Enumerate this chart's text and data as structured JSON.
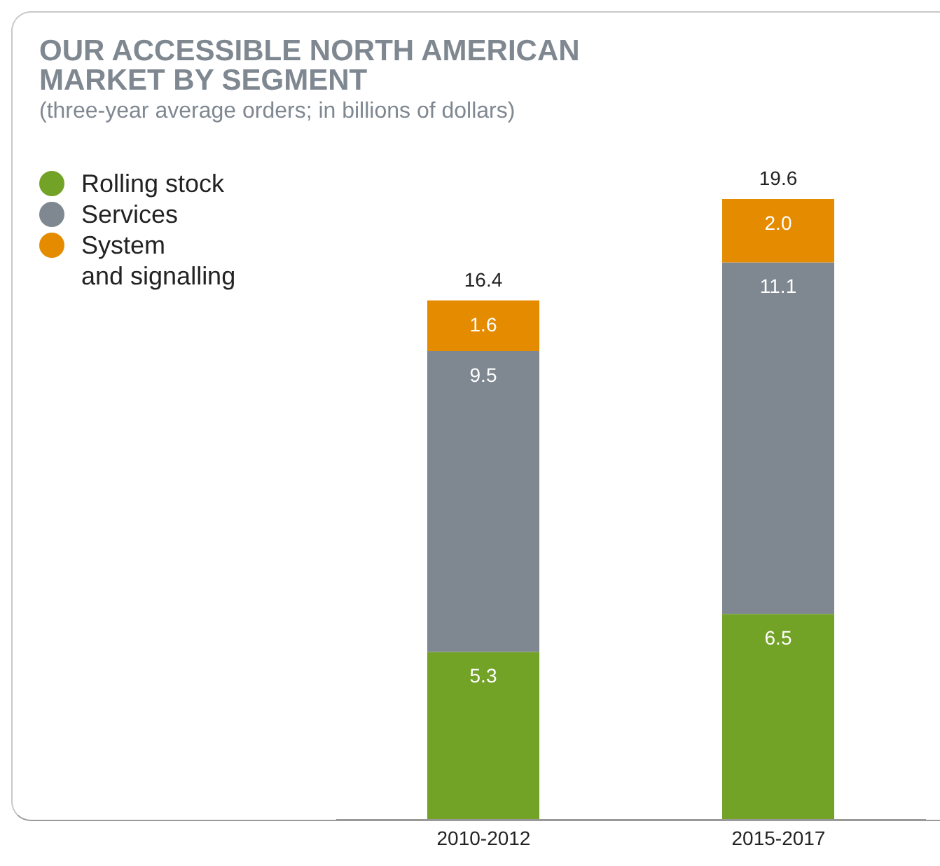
{
  "chart_data": {
    "type": "bar",
    "title": "OUR ACCESSIBLE NORTH AMERICAN\nMARKET BY SEGMENT",
    "subtitle": "(three-year average orders; in billions of dollars)",
    "categories": [
      "2010-2012",
      "2015-2017"
    ],
    "stacked": true,
    "totals": [
      "16.4",
      "19.6"
    ],
    "legend": "top left",
    "series": [
      {
        "name": "Rolling stock",
        "color": "#72a226",
        "values": [
          5.3,
          6.5
        ],
        "value_labels": [
          "5.3",
          "6.5"
        ]
      },
      {
        "name": "Services",
        "color": "#7f8891",
        "values": [
          9.5,
          11.1
        ],
        "value_labels": [
          "9.5",
          "11.1"
        ]
      },
      {
        "name": "System\nand signalling",
        "color": "#e58b00",
        "values": [
          1.6,
          2.0
        ],
        "value_labels": [
          "1.6",
          "2.0"
        ]
      }
    ]
  }
}
